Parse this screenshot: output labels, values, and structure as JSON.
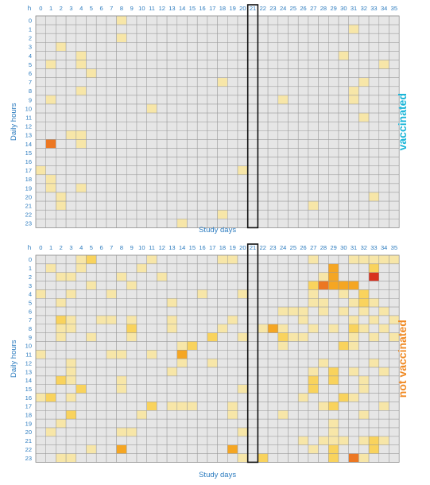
{
  "chart_data": [
    {
      "type": "heatmap",
      "title": "",
      "group_label": "vaccinated",
      "group_color": "#1ab5d8",
      "xlabel": "Study days",
      "ylabel": "Daily hours",
      "corner_label": "h",
      "x_ticks": [
        "0",
        "1",
        "2",
        "3",
        "4",
        "5",
        "6",
        "7",
        "8",
        "9",
        "10",
        "11",
        "12",
        "13",
        "14",
        "15",
        "16",
        "17",
        "18",
        "19",
        "20",
        "21",
        "22",
        "23",
        "24",
        "25",
        "26",
        "27",
        "28",
        "29",
        "30",
        "31",
        "32",
        "33",
        "34",
        "35"
      ],
      "y_ticks": [
        "0",
        "1",
        "2",
        "3",
        "4",
        "5",
        "6",
        "7",
        "8",
        "9",
        "10",
        "11",
        "12",
        "13",
        "14",
        "15",
        "16",
        "17",
        "18",
        "19",
        "20",
        "21",
        "22",
        "23"
      ],
      "highlight_day": 21,
      "cells": [
        [
          8,
          0,
          1
        ],
        [
          31,
          1,
          1
        ],
        [
          2,
          3,
          1
        ],
        [
          8,
          2,
          1
        ],
        [
          4,
          4,
          1
        ],
        [
          30,
          4,
          1
        ],
        [
          1,
          5,
          1
        ],
        [
          4,
          5,
          1
        ],
        [
          34,
          5,
          1
        ],
        [
          5,
          6,
          1
        ],
        [
          18,
          7,
          1
        ],
        [
          32,
          7,
          1
        ],
        [
          4,
          8,
          1
        ],
        [
          31,
          8,
          1
        ],
        [
          1,
          9,
          1
        ],
        [
          24,
          9,
          1
        ],
        [
          31,
          9,
          1
        ],
        [
          11,
          10,
          1
        ],
        [
          32,
          11,
          1
        ],
        [
          3,
          13,
          1
        ],
        [
          4,
          13,
          1
        ],
        [
          1,
          14,
          4
        ],
        [
          4,
          14,
          1
        ],
        [
          20,
          17,
          1
        ],
        [
          0,
          17,
          1
        ],
        [
          1,
          18,
          1
        ],
        [
          1,
          19,
          1
        ],
        [
          4,
          19,
          1
        ],
        [
          2,
          20,
          1
        ],
        [
          33,
          20,
          1
        ],
        [
          2,
          21,
          1
        ],
        [
          27,
          21,
          1
        ],
        [
          18,
          22,
          1
        ],
        [
          14,
          23,
          1
        ]
      ]
    },
    {
      "type": "heatmap",
      "title": "",
      "group_label": "not vaccinated",
      "group_color": "#f08a24",
      "xlabel": "Study days",
      "ylabel": "Daily hours",
      "corner_label": "h",
      "x_ticks": [
        "0",
        "1",
        "2",
        "3",
        "4",
        "5",
        "6",
        "7",
        "8",
        "9",
        "10",
        "11",
        "12",
        "13",
        "14",
        "15",
        "16",
        "17",
        "18",
        "19",
        "20",
        "21",
        "22",
        "23",
        "24",
        "25",
        "26",
        "27",
        "28",
        "29",
        "30",
        "31",
        "32",
        "33",
        "34",
        "35"
      ],
      "y_ticks": [
        "0",
        "1",
        "2",
        "3",
        "4",
        "5",
        "6",
        "7",
        "8",
        "9",
        "10",
        "11",
        "12",
        "13",
        "14",
        "15",
        "16",
        "17",
        "18",
        "19",
        "20",
        "21",
        "22",
        "23"
      ],
      "highlight_day": 21,
      "cells": [
        [
          4,
          0,
          1
        ],
        [
          5,
          0,
          2
        ],
        [
          11,
          0,
          1
        ],
        [
          18,
          0,
          1
        ],
        [
          19,
          0,
          1
        ],
        [
          27,
          0,
          1
        ],
        [
          31,
          0,
          1
        ],
        [
          32,
          0,
          1
        ],
        [
          33,
          0,
          1
        ],
        [
          34,
          0,
          1
        ],
        [
          35,
          0,
          1
        ],
        [
          1,
          1,
          1
        ],
        [
          4,
          1,
          1
        ],
        [
          10,
          1,
          1
        ],
        [
          29,
          1,
          3
        ],
        [
          33,
          1,
          2
        ],
        [
          2,
          2,
          1
        ],
        [
          3,
          2,
          1
        ],
        [
          8,
          2,
          1
        ],
        [
          12,
          2,
          1
        ],
        [
          28,
          2,
          1
        ],
        [
          29,
          2,
          3
        ],
        [
          33,
          2,
          5
        ],
        [
          5,
          3,
          1
        ],
        [
          9,
          3,
          1
        ],
        [
          27,
          3,
          2
        ],
        [
          28,
          3,
          4
        ],
        [
          29,
          3,
          3
        ],
        [
          30,
          3,
          3
        ],
        [
          31,
          3,
          3
        ],
        [
          0,
          4,
          1
        ],
        [
          3,
          4,
          1
        ],
        [
          7,
          4,
          1
        ],
        [
          16,
          4,
          1
        ],
        [
          20,
          4,
          1
        ],
        [
          27,
          4,
          1
        ],
        [
          30,
          4,
          1
        ],
        [
          32,
          4,
          2
        ],
        [
          2,
          5,
          1
        ],
        [
          13,
          5,
          1
        ],
        [
          27,
          5,
          1
        ],
        [
          28,
          5,
          1
        ],
        [
          31,
          5,
          1
        ],
        [
          32,
          5,
          2
        ],
        [
          33,
          5,
          1
        ],
        [
          24,
          6,
          1
        ],
        [
          25,
          6,
          1
        ],
        [
          26,
          6,
          1
        ],
        [
          28,
          6,
          1
        ],
        [
          30,
          6,
          1
        ],
        [
          32,
          6,
          1
        ],
        [
          34,
          6,
          1
        ],
        [
          2,
          7,
          2
        ],
        [
          3,
          7,
          1
        ],
        [
          6,
          7,
          1
        ],
        [
          7,
          7,
          1
        ],
        [
          9,
          7,
          1
        ],
        [
          13,
          7,
          1
        ],
        [
          19,
          7,
          1
        ],
        [
          26,
          7,
          1
        ],
        [
          31,
          7,
          1
        ],
        [
          33,
          7,
          1
        ],
        [
          35,
          7,
          1
        ],
        [
          2,
          8,
          1
        ],
        [
          3,
          8,
          1
        ],
        [
          9,
          8,
          2
        ],
        [
          13,
          8,
          1
        ],
        [
          18,
          8,
          1
        ],
        [
          22,
          8,
          1
        ],
        [
          23,
          8,
          3
        ],
        [
          24,
          8,
          1
        ],
        [
          27,
          8,
          1
        ],
        [
          29,
          8,
          1
        ],
        [
          31,
          8,
          2
        ],
        [
          32,
          8,
          1
        ],
        [
          34,
          8,
          1
        ],
        [
          2,
          9,
          1
        ],
        [
          5,
          9,
          1
        ],
        [
          9,
          9,
          1
        ],
        [
          17,
          9,
          2
        ],
        [
          20,
          9,
          1
        ],
        [
          24,
          9,
          2
        ],
        [
          25,
          9,
          1
        ],
        [
          26,
          9,
          1
        ],
        [
          31,
          9,
          1
        ],
        [
          33,
          9,
          1
        ],
        [
          35,
          9,
          1
        ],
        [
          14,
          10,
          1
        ],
        [
          15,
          10,
          2
        ],
        [
          24,
          10,
          1
        ],
        [
          30,
          10,
          2
        ],
        [
          31,
          10,
          1
        ],
        [
          0,
          11,
          1
        ],
        [
          7,
          11,
          1
        ],
        [
          8,
          11,
          1
        ],
        [
          11,
          11,
          1
        ],
        [
          14,
          11,
          3
        ],
        [
          3,
          12,
          1
        ],
        [
          14,
          12,
          1
        ],
        [
          17,
          12,
          1
        ],
        [
          28,
          12,
          1
        ],
        [
          33,
          12,
          1
        ],
        [
          3,
          13,
          1
        ],
        [
          13,
          13,
          1
        ],
        [
          27,
          13,
          1
        ],
        [
          29,
          13,
          2
        ],
        [
          31,
          13,
          1
        ],
        [
          34,
          13,
          1
        ],
        [
          2,
          14,
          2
        ],
        [
          3,
          14,
          1
        ],
        [
          8,
          14,
          1
        ],
        [
          27,
          14,
          2
        ],
        [
          29,
          14,
          2
        ],
        [
          32,
          14,
          1
        ],
        [
          4,
          15,
          2
        ],
        [
          8,
          15,
          1
        ],
        [
          20,
          15,
          1
        ],
        [
          27,
          15,
          2
        ],
        [
          32,
          15,
          1
        ],
        [
          0,
          16,
          1
        ],
        [
          1,
          16,
          2
        ],
        [
          3,
          16,
          1
        ],
        [
          26,
          16,
          1
        ],
        [
          30,
          16,
          2
        ],
        [
          31,
          16,
          1
        ],
        [
          11,
          17,
          2
        ],
        [
          13,
          17,
          1
        ],
        [
          14,
          17,
          1
        ],
        [
          15,
          17,
          1
        ],
        [
          19,
          17,
          1
        ],
        [
          28,
          17,
          1
        ],
        [
          29,
          17,
          2
        ],
        [
          34,
          17,
          1
        ],
        [
          3,
          18,
          2
        ],
        [
          10,
          18,
          1
        ],
        [
          19,
          18,
          1
        ],
        [
          24,
          18,
          1
        ],
        [
          32,
          18,
          1
        ],
        [
          2,
          19,
          1
        ],
        [
          29,
          19,
          1
        ],
        [
          1,
          20,
          1
        ],
        [
          8,
          20,
          1
        ],
        [
          9,
          20,
          1
        ],
        [
          20,
          20,
          1
        ],
        [
          29,
          20,
          1
        ],
        [
          26,
          21,
          1
        ],
        [
          28,
          21,
          1
        ],
        [
          29,
          21,
          1
        ],
        [
          30,
          21,
          1
        ],
        [
          32,
          21,
          1
        ],
        [
          33,
          21,
          2
        ],
        [
          34,
          21,
          1
        ],
        [
          5,
          22,
          1
        ],
        [
          8,
          22,
          3
        ],
        [
          19,
          22,
          3
        ],
        [
          27,
          22,
          1
        ],
        [
          29,
          22,
          2
        ],
        [
          33,
          22,
          2
        ],
        [
          2,
          23,
          1
        ],
        [
          3,
          23,
          1
        ],
        [
          20,
          23,
          1
        ],
        [
          22,
          23,
          2
        ],
        [
          29,
          23,
          2
        ],
        [
          31,
          23,
          4
        ],
        [
          32,
          23,
          1
        ]
      ]
    }
  ],
  "color_scale": [
    "#e6e6e6",
    "#f7e6a8",
    "#f9d35d",
    "#f5a623",
    "#ec7722",
    "#d8311e"
  ]
}
